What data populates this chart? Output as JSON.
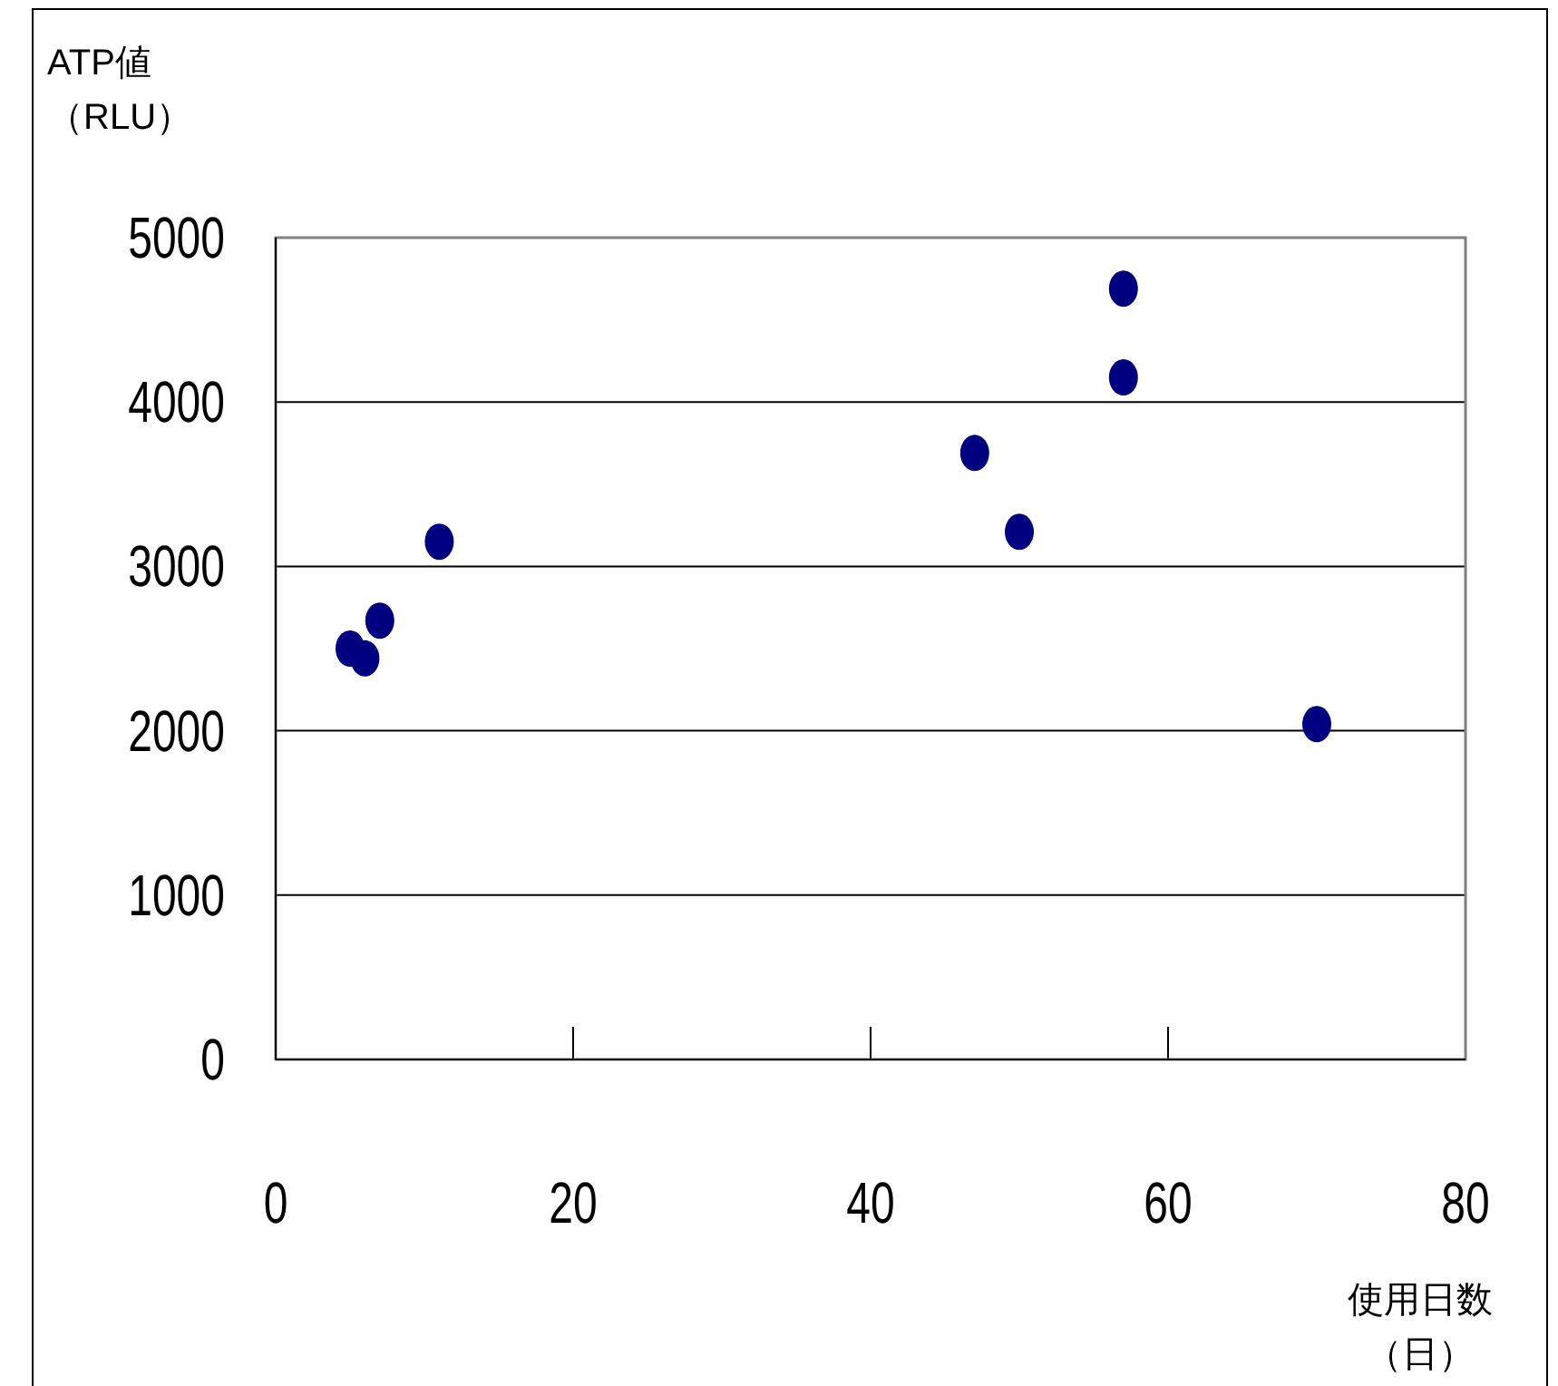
{
  "chart_data": {
    "type": "scatter",
    "xlabel": "使用日数（日）",
    "ylabel": "ATP値（RLU）",
    "x": [
      5,
      6,
      7,
      11,
      47,
      50,
      57,
      57,
      70
    ],
    "values": [
      2500,
      2440,
      2670,
      3150,
      3690,
      3210,
      4150,
      4690,
      2040
    ],
    "color": "#000080",
    "marker": "circle",
    "xlim": [
      0,
      80
    ],
    "xticks": [
      0,
      20,
      40,
      60,
      80
    ],
    "ylim": [
      0,
      5000
    ],
    "yticks": [
      0,
      1000,
      2000,
      3000,
      4000,
      5000
    ],
    "grid": "y"
  }
}
